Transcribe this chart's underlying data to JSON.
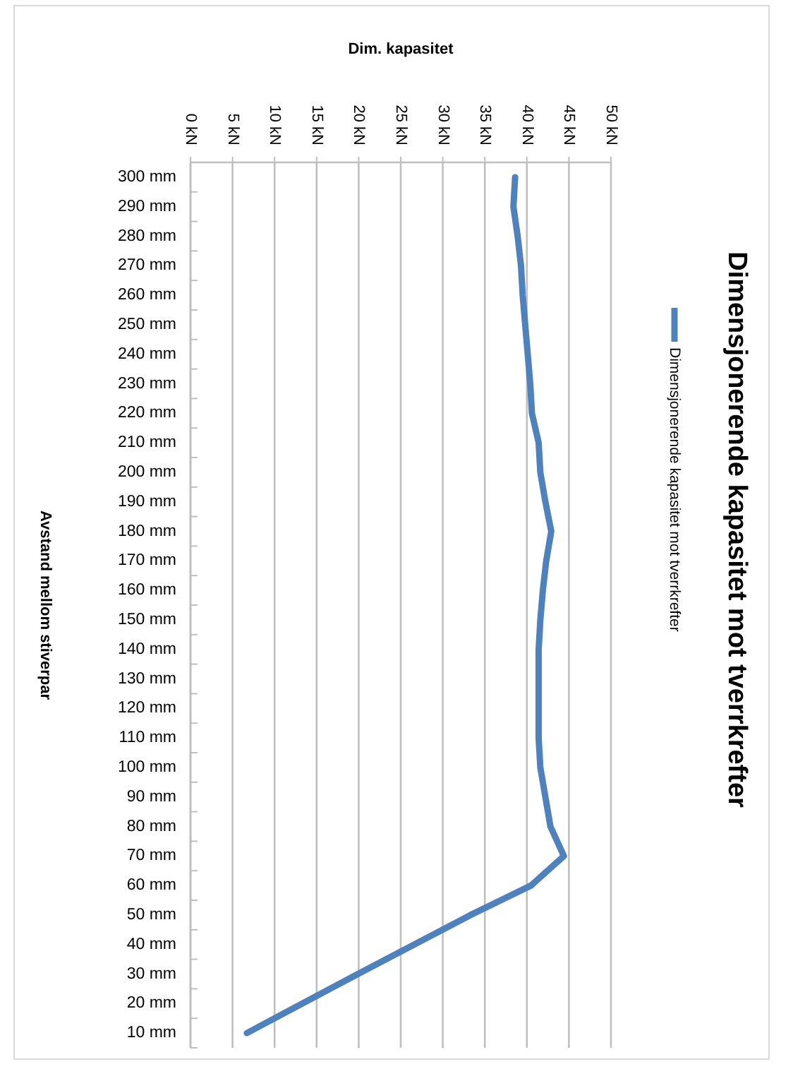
{
  "chart_data": {
    "type": "line",
    "orientation": "horizontal",
    "title": "Dimensjonerende kapasitet mot tverrkrefter",
    "xlabel": "Dim. kapasitet",
    "ylabel": "Avstand mellom stiverpar",
    "categories": [
      "300 mm",
      "290 mm",
      "280 mm",
      "270 mm",
      "260 mm",
      "250 mm",
      "240 mm",
      "230 mm",
      "220 mm",
      "210 mm",
      "200 mm",
      "190 mm",
      "180 mm",
      "170 mm",
      "160 mm",
      "150 mm",
      "140 mm",
      "130 mm",
      "120 mm",
      "110 mm",
      "100 mm",
      "90 mm",
      "80 mm",
      "70 mm",
      "60 mm",
      "50 mm",
      "40 mm",
      "30 mm",
      "20 mm",
      "10 mm"
    ],
    "series": [
      {
        "name": "Dimensjonerende kapasitet mot tverrkrefter",
        "color": "#4f81bd",
        "values": [
          38.6,
          38.4,
          38.9,
          39.3,
          39.5,
          39.8,
          40.1,
          40.4,
          40.6,
          41.4,
          41.6,
          42.2,
          42.9,
          42.3,
          41.9,
          41.6,
          41.4,
          41.4,
          41.4,
          41.4,
          41.6,
          42.2,
          42.8,
          44.4,
          40.5,
          33.3,
          26.6,
          19.9,
          13.3,
          6.7
        ]
      }
    ],
    "xlim": [
      0,
      50
    ],
    "xticks": [
      {
        "value": 0,
        "label": "0 kN"
      },
      {
        "value": 5,
        "label": "5 kN"
      },
      {
        "value": 10,
        "label": "10 kN"
      },
      {
        "value": 15,
        "label": "15 kN"
      },
      {
        "value": 20,
        "label": "20 kN"
      },
      {
        "value": 25,
        "label": "25 kN"
      },
      {
        "value": 30,
        "label": "30 kN"
      },
      {
        "value": 35,
        "label": "35 kN"
      },
      {
        "value": 40,
        "label": "40 kN"
      },
      {
        "value": 45,
        "label": "45 kN"
      },
      {
        "value": 50,
        "label": "50 kN"
      }
    ],
    "grid": "x",
    "legend": "right",
    "marker": "none",
    "line_style": "solid"
  }
}
